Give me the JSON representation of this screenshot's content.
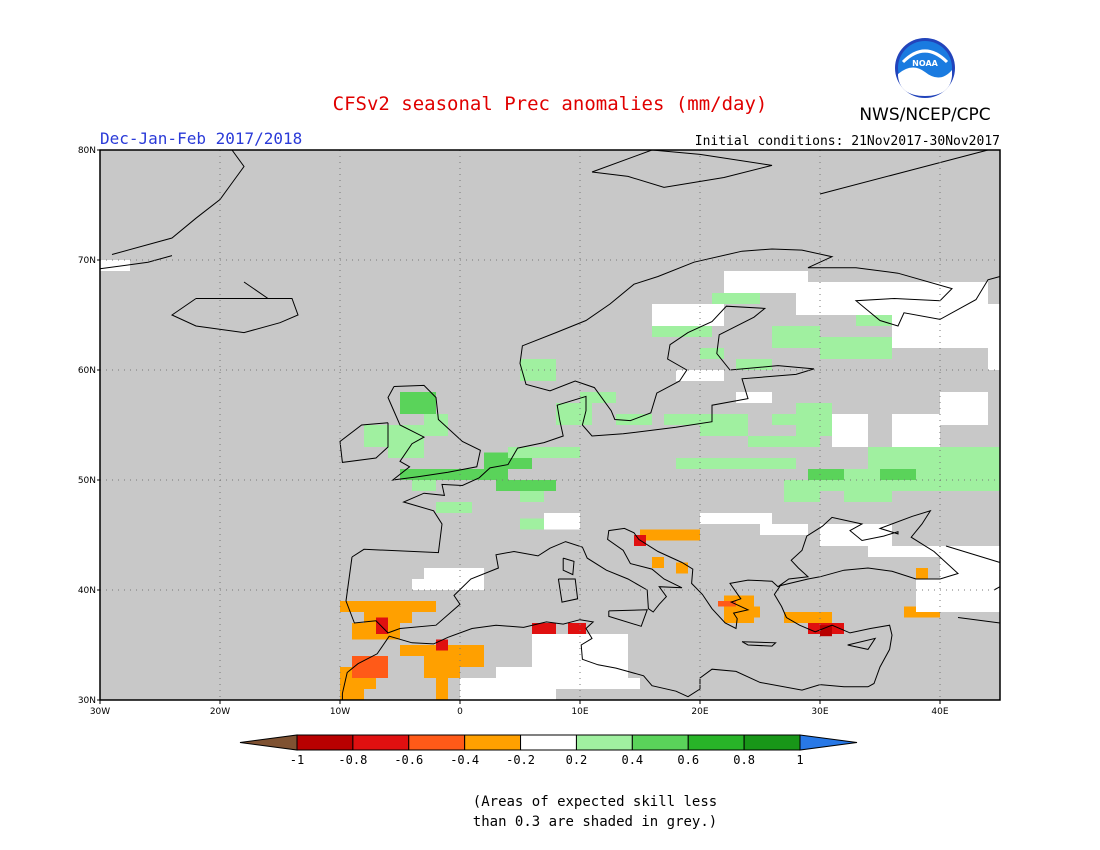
{
  "header": {
    "title": "CFSv2 seasonal Prec anomalies (mm/day)",
    "season": "Dec-Jan-Feb 2017/2018",
    "initial_conditions": "Initial conditions: 21Nov2017-30Nov2017",
    "agency": "NWS/NCEP/CPC",
    "logo_text": "NOAA"
  },
  "map": {
    "lat_labels": [
      "80N",
      "70N",
      "60N",
      "50N",
      "40N",
      "30N"
    ],
    "lon_labels": [
      "30W",
      "20W",
      "10W",
      "0",
      "10E",
      "20E",
      "30E",
      "40E"
    ],
    "extent": {
      "lon_min": -30,
      "lon_max": 45,
      "lat_min": 30,
      "lat_max": 80
    },
    "grid_step_deg": 10,
    "background_color": "#c8c8c8"
  },
  "legend": {
    "tick_labels": [
      "-1",
      "-0.8",
      "-0.6",
      "-0.4",
      "-0.2",
      "0.2",
      "0.4",
      "0.6",
      "0.8",
      "1"
    ],
    "colors": [
      "#7f5232",
      "#b80000",
      "#e01010",
      "#ff5a18",
      "#ffa000",
      "#ffffff",
      "#a0f0a0",
      "#5ad35a",
      "#28b428",
      "#189618",
      "#2878e6"
    ]
  },
  "note": {
    "line1": "(Areas of expected skill less",
    "line2": "than 0.3 are shaded in grey.)"
  }
}
